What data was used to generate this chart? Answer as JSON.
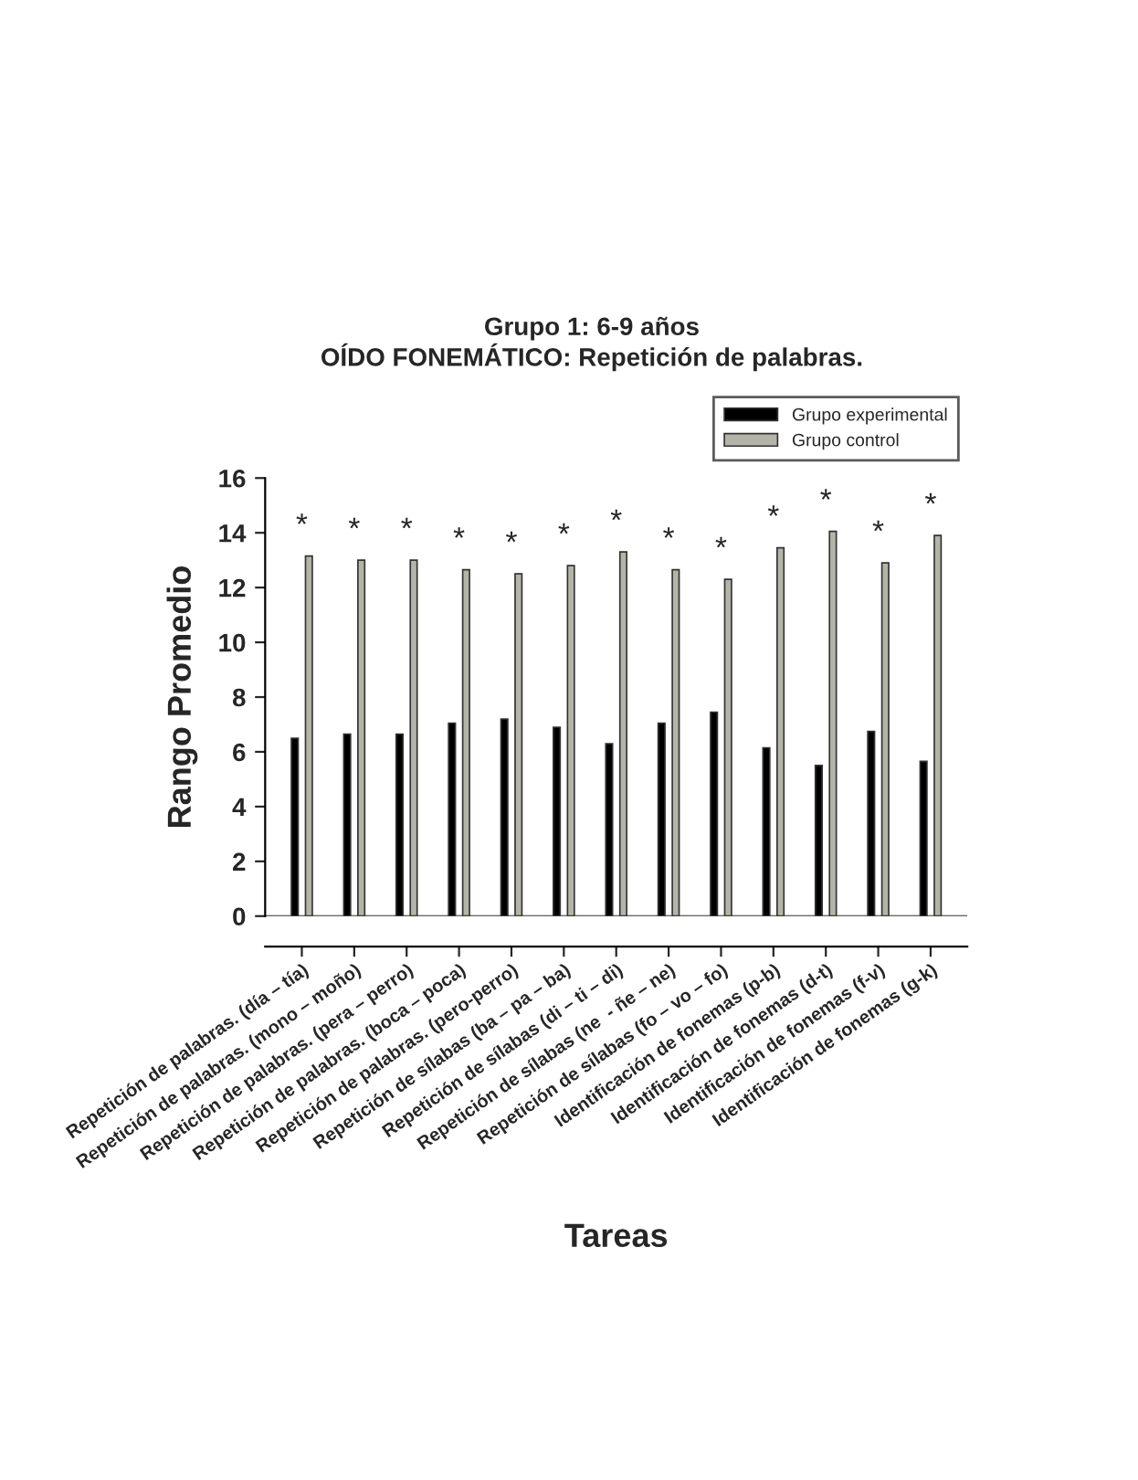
{
  "chart_data": {
    "type": "bar",
    "title": "Grupo 1: 6-9 años",
    "subtitle": "OÍDO FONEMÁTICO: Repetición de palabras.",
    "xlabel": "Tareas",
    "ylabel": "Rango Promedio",
    "categories": [
      "Repetición de palabras. (día – tía)",
      "Repetición de palabras. (mono – moño)",
      "Repetición de palabras. (pera – perro)",
      "Repetición de palabras. (boca – poca)",
      "Repetición de palabras. (pero-perro)",
      "Repetición de sílabas (ba – pa – ba)",
      "Repetición de sílabas (di – ti – di)",
      "Repetición de sílabas (ne  - ñe – ne)",
      "Repetición de sílabas (fo – vo – fo)",
      "Identificación de fonemas (p-b)",
      "Identificación de fonemas (d-t)",
      "Identificación de fonemas (f-v)",
      "Identificación de fonemas (g-k)"
    ],
    "series": [
      {
        "name": "Grupo experimental",
        "color": "#000000",
        "values": [
          6.5,
          6.65,
          6.65,
          7.05,
          7.2,
          6.9,
          6.3,
          7.05,
          7.45,
          6.15,
          5.5,
          6.75,
          5.65
        ]
      },
      {
        "name": "Grupo control",
        "color": "#b4b4a8",
        "values": [
          13.15,
          13.0,
          13.0,
          12.65,
          12.5,
          12.8,
          13.3,
          12.65,
          12.3,
          13.45,
          14.05,
          12.9,
          13.9
        ]
      }
    ],
    "annotations": [
      {
        "text": "*",
        "x": "Repetición de palabras. (día – tía)",
        "y": 13.15
      },
      {
        "text": "*",
        "x": "Repetición de palabras. (mono – moño)",
        "y": 13.0
      },
      {
        "text": "*",
        "x": "Repetición de palabras. (pera – perro)",
        "y": 13.0
      },
      {
        "text": "*",
        "x": "Repetición de palabras. (boca – poca)",
        "y": 12.65
      },
      {
        "text": "*",
        "x": "Repetición de palabras. (pero-perro)",
        "y": 12.5
      },
      {
        "text": "*",
        "x": "Repetición de sílabas (ba – pa – ba)",
        "y": 12.8
      },
      {
        "text": "*",
        "x": "Repetición de sílabas (di – ti – di)",
        "y": 13.3
      },
      {
        "text": "*",
        "x": "Repetición de sílabas (ne  - ñe – ne)",
        "y": 12.65
      },
      {
        "text": "*",
        "x": "Repetición de sílabas (fo – vo – fo)",
        "y": 12.3
      },
      {
        "text": "*",
        "x": "Identificación de fonemas (p-b)",
        "y": 13.45
      },
      {
        "text": "*",
        "x": "Identificación de fonemas (d-t)",
        "y": 14.05
      },
      {
        "text": "*",
        "x": "Identificación de fonemas (f-v)",
        "y": 12.9
      },
      {
        "text": "*",
        "x": "Identificación de fonemas (g-k)",
        "y": 13.9
      }
    ],
    "ylim": [
      0,
      16
    ],
    "yticks": [
      0,
      2,
      4,
      6,
      8,
      10,
      12,
      14,
      16
    ],
    "grid": false,
    "legend": "top right"
  }
}
